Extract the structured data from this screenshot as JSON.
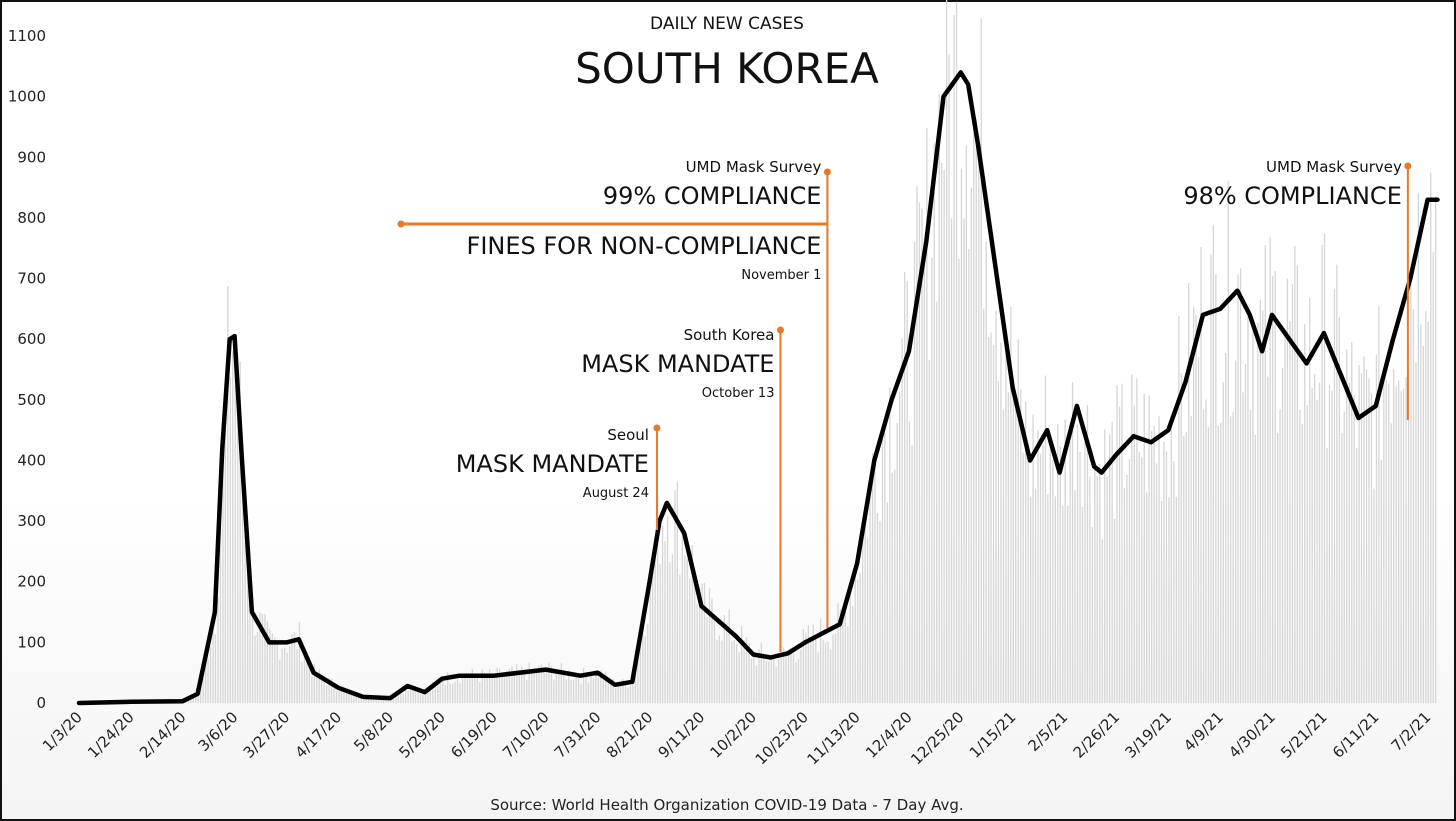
{
  "chart_data": {
    "type": "line",
    "subtitle": "DAILY NEW CASES",
    "title": "SOUTH KOREA",
    "source": "Source: World Health Organization COVID-19 Data - 7 Day Avg.",
    "ylim": [
      0,
      1100
    ],
    "y_ticks": [
      "0",
      "100",
      "200",
      "300",
      "400",
      "500",
      "600",
      "700",
      "800",
      "900",
      "1000",
      "1100"
    ],
    "x_tick_labels": [
      "1/3/20",
      "1/24/20",
      "2/14/20",
      "3/6/20",
      "3/27/20",
      "4/17/20",
      "5/8/20",
      "5/29/20",
      "6/19/20",
      "7/10/20",
      "7/31/20",
      "8/21/20",
      "9/11/20",
      "10/2/20",
      "10/23/20",
      "11/13/20",
      "12/4/20",
      "12/25/20",
      "1/15/21",
      "2/5/21",
      "2/26/21",
      "3/19/21",
      "4/9/21",
      "4/30/21",
      "5/21/21",
      "6/11/21",
      "7/2/21"
    ],
    "grid": false,
    "series": [
      {
        "x": [
          "1/3/20",
          "1/24/20",
          "2/14/20",
          "2/20/20",
          "2/27/20",
          "3/1/20",
          "3/4/20",
          "3/6/20",
          "3/9/20",
          "3/13/20",
          "3/20/20",
          "3/27/20",
          "4/1/20",
          "4/7/20",
          "4/17/20",
          "4/27/20",
          "5/8/20",
          "5/15/20",
          "5/22/20",
          "5/29/20",
          "6/5/20",
          "6/19/20",
          "7/10/20",
          "7/24/20",
          "7/31/20",
          "8/7/20",
          "8/14/20",
          "8/21/20",
          "8/25/20",
          "8/28/20",
          "9/4/20",
          "9/11/20",
          "9/25/20",
          "10/2/20",
          "10/9/20",
          "10/16/20",
          "10/23/20",
          "10/30/20",
          "11/6/20",
          "11/13/20",
          "11/20/20",
          "11/27/20",
          "12/4/20",
          "12/11/20",
          "12/18/20",
          "12/25/20",
          "12/28/20",
          "1/1/21",
          "1/8/21",
          "1/15/21",
          "1/22/21",
          "1/29/21",
          "2/3/21",
          "2/10/21",
          "2/17/21",
          "2/20/21",
          "2/26/21",
          "3/5/21",
          "3/12/21",
          "3/19/21",
          "3/26/21",
          "4/2/21",
          "4/9/21",
          "4/16/21",
          "4/21/21",
          "4/26/21",
          "4/30/21",
          "5/7/21",
          "5/14/21",
          "5/21/21",
          "5/28/21",
          "6/4/21",
          "6/11/21",
          "6/18/21",
          "6/25/21",
          "7/2/21",
          "7/6/21"
        ],
        "y": [
          0,
          2,
          3,
          15,
          150,
          420,
          600,
          605,
          400,
          150,
          100,
          100,
          105,
          50,
          25,
          10,
          8,
          28,
          18,
          40,
          45,
          45,
          55,
          45,
          50,
          30,
          35,
          200,
          300,
          330,
          280,
          160,
          110,
          80,
          75,
          82,
          100,
          115,
          130,
          230,
          400,
          500,
          580,
          760,
          1000,
          1040,
          1020,
          920,
          720,
          520,
          400,
          450,
          380,
          490,
          390,
          380,
          410,
          440,
          430,
          450,
          530,
          640,
          650,
          680,
          640,
          580,
          640,
          600,
          560,
          610,
          540,
          470,
          490,
          600,
          700,
          830,
          830
        ]
      }
    ],
    "annotations": [
      {
        "date": "8/24/20",
        "small": "Seoul",
        "big": "MASK MANDATE",
        "detail": "August 24"
      },
      {
        "date": "10/13/20",
        "small": "South Korea",
        "big": "MASK MANDATE",
        "detail": "October 13"
      },
      {
        "date": "11/1/20",
        "small": "UMD Mask Survey",
        "big": "99% COMPLIANCE",
        "big2": "FINES FOR NON-COMPLIANCE",
        "detail": "November 1"
      },
      {
        "date": "6/24/21",
        "small": "UMD Mask Survey",
        "big": "98% COMPLIANCE"
      }
    ],
    "colors": {
      "line": "#000000",
      "annotation": "#e8792b",
      "bars": "#d6d6d6"
    }
  }
}
